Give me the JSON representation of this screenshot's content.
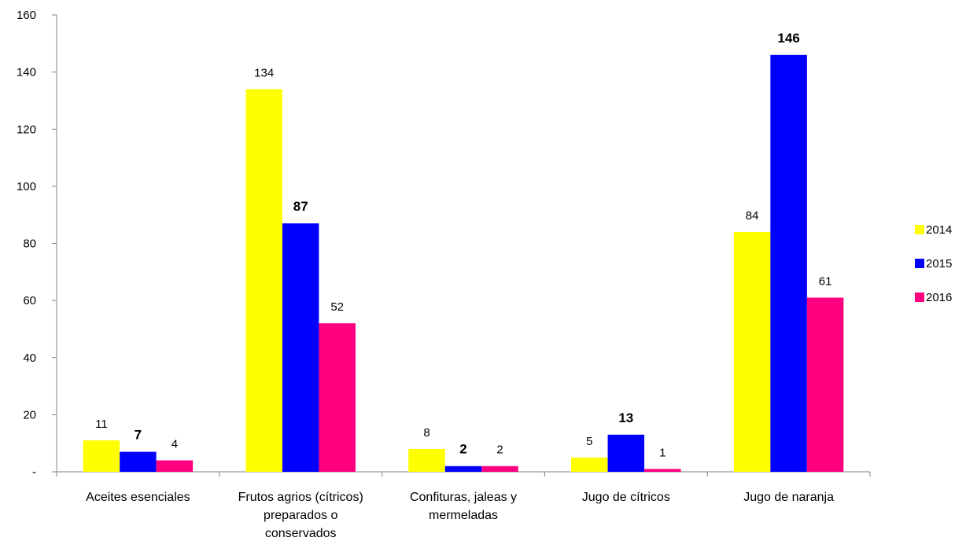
{
  "chart_data": {
    "type": "bar",
    "title": "",
    "xlabel": "",
    "ylabel": "",
    "ylim": [
      0,
      160
    ],
    "yticks": [
      0,
      20,
      40,
      60,
      80,
      100,
      120,
      140,
      160
    ],
    "ytick_labels": [
      "-",
      "20",
      "40",
      "60",
      "80",
      "100",
      "120",
      "140",
      "160"
    ],
    "grid": false,
    "legend_position": "right",
    "categories": [
      "Aceites esenciales",
      "Frutos agrios (cítricos) preparados o conservados",
      "Confituras, jaleas y mermeladas",
      "Jugo de cítricos",
      "Jugo de naranja"
    ],
    "category_lines": [
      [
        "Aceites esenciales"
      ],
      [
        "Frutos agrios (cítricos)",
        "preparados o",
        "conservados"
      ],
      [
        "Confituras, jaleas y",
        "mermeladas"
      ],
      [
        "Jugo de cítricos"
      ],
      [
        "Jugo de naranja"
      ]
    ],
    "series": [
      {
        "name": "2014",
        "color": "#ffff00",
        "values": [
          11,
          134,
          8,
          5,
          84
        ],
        "bold_labels": false
      },
      {
        "name": "2015",
        "color": "#0000ff",
        "values": [
          7,
          87,
          2,
          13,
          146
        ],
        "bold_labels": true
      },
      {
        "name": "2016",
        "color": "#ff0080",
        "values": [
          4,
          52,
          2,
          1,
          61
        ],
        "bold_labels": false
      }
    ],
    "data_labels": [
      [
        "11",
        "134",
        "8",
        "5",
        "84"
      ],
      [
        "7",
        "87",
        "2",
        "13",
        "146"
      ],
      [
        "4",
        "52",
        "2",
        "1",
        "61"
      ]
    ]
  }
}
